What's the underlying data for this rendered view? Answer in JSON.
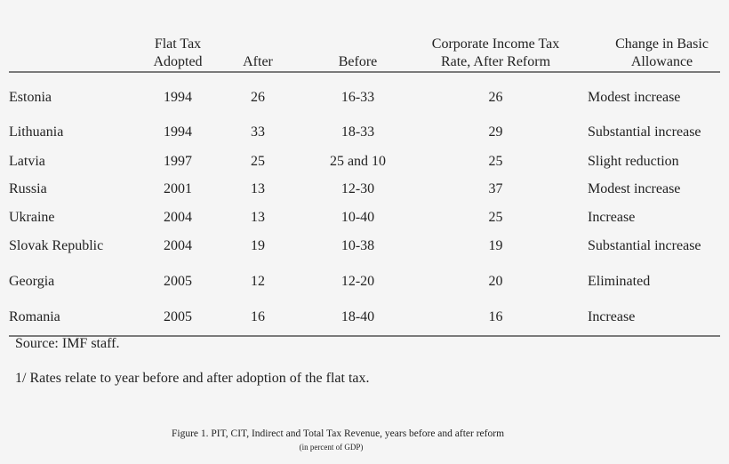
{
  "table": {
    "headers": [
      {
        "line1": "",
        "line2": ""
      },
      {
        "line1": "Flat Tax",
        "line2": "Adopted"
      },
      {
        "line1": "",
        "line2": "After"
      },
      {
        "line1": "",
        "line2": "Before"
      },
      {
        "line1": "Corporate Income Tax",
        "line2": "Rate, After Reform"
      },
      {
        "line1": "Change in Basic",
        "line2": "Allowance"
      }
    ],
    "rows": [
      {
        "country": "Estonia",
        "year": "1994",
        "after": "26",
        "before": "16-33",
        "cit": "26",
        "allowance": "Modest increase"
      },
      {
        "country": "Lithuania",
        "year": "1994",
        "after": "33",
        "before": "18-33",
        "cit": "29",
        "allowance": "Substantial increase"
      },
      {
        "country": "Latvia",
        "year": "1997",
        "after": "25",
        "before": "25 and 10",
        "cit": "25",
        "allowance": "Slight reduction"
      },
      {
        "country": "Russia",
        "year": "2001",
        "after": "13",
        "before": "12-30",
        "cit": "37",
        "allowance": "Modest increase"
      },
      {
        "country": "Ukraine",
        "year": "2004",
        "after": "13",
        "before": "10-40",
        "cit": "25",
        "allowance": "Increase"
      },
      {
        "country": "Slovak Republic",
        "year": "2004",
        "after": "19",
        "before": "10-38",
        "cit": "19",
        "allowance": "Substantial increase"
      },
      {
        "country": "Georgia",
        "year": "2005",
        "after": "12",
        "before": "12-20",
        "cit": "20",
        "allowance": "Eliminated"
      },
      {
        "country": "Romania",
        "year": "2005",
        "after": "16",
        "before": "18-40",
        "cit": "16",
        "allowance": "Increase"
      }
    ]
  },
  "notes": {
    "source": "Source: IMF staff.",
    "footnote": "1/ Rates relate to year before and after adoption of the flat tax."
  },
  "figure": {
    "caption": "Figure 1. PIT, CIT, Indirect and Total Tax Revenue, years before and after reform",
    "subcaption": "(in percent of GDP)"
  }
}
